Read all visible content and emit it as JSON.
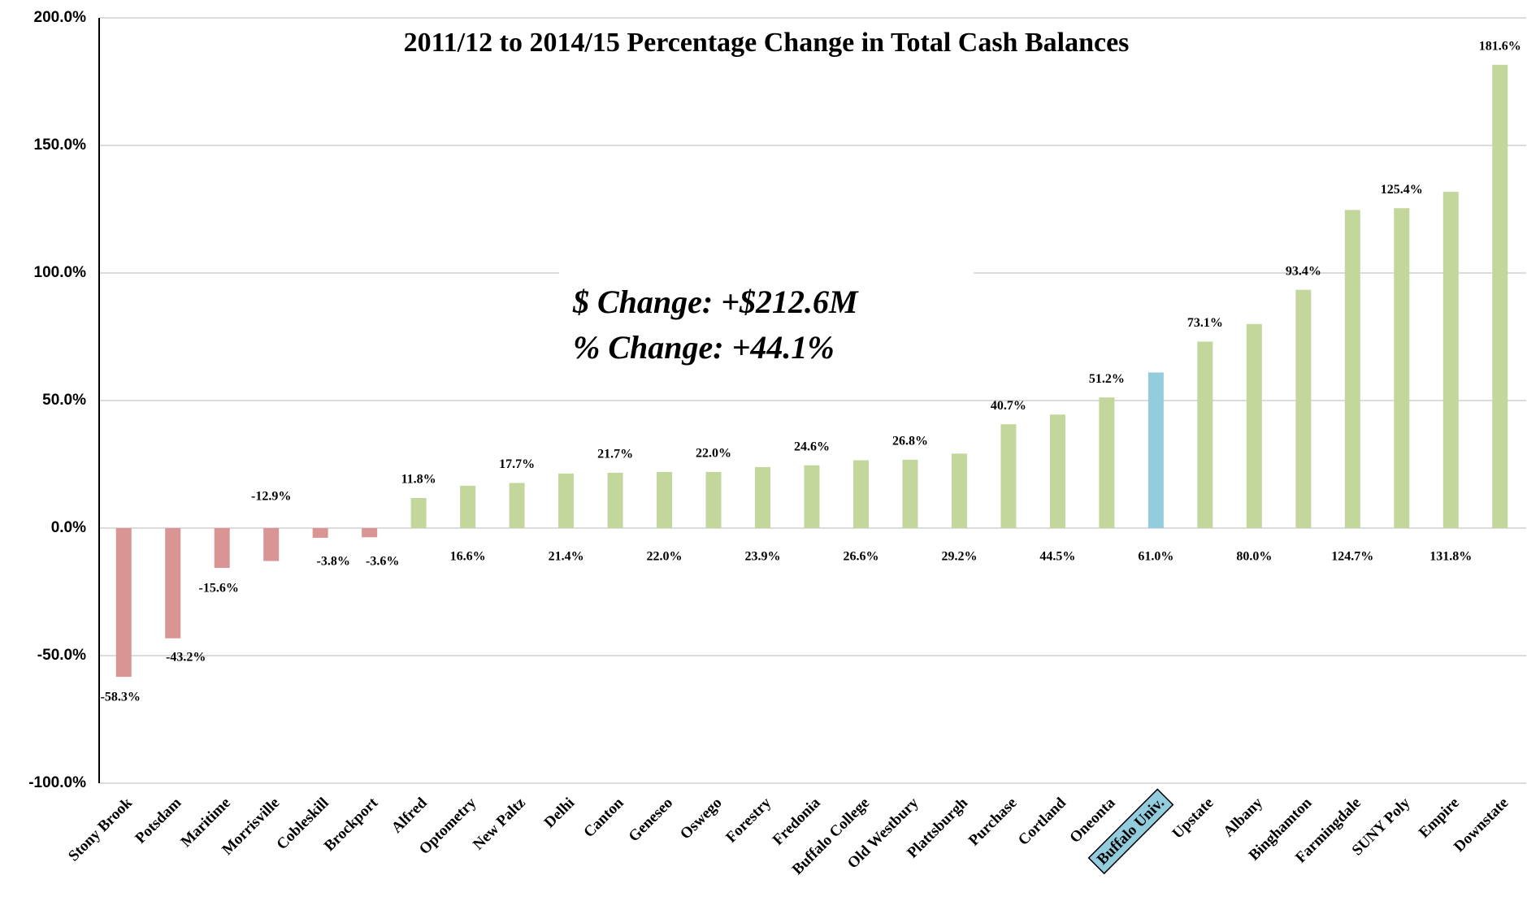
{
  "chart_data": {
    "type": "bar",
    "title": "2011/12 to 2014/15 Percentage Change in Total Cash Balances",
    "annotations": [
      "$    Change: +$212.6M",
      "%  Change: +44.1%"
    ],
    "categories": [
      "Stony Brook",
      "Potsdam",
      "Maritime",
      "Morrisville",
      "Cobleskill",
      "Brockport",
      "Alfred",
      "Optometry",
      "New Paltz",
      "Delhi",
      "Canton",
      "Geneseo",
      "Oswego",
      "Forestry",
      "Fredonia",
      "Buffalo College",
      "Old Westbury",
      "Plattsburgh",
      "Purchase",
      "Cortland",
      "Oneonta",
      "Buffalo Univ.",
      "Upstate",
      "Albany",
      "Binghamton",
      "Farmingdale",
      "SUNY Poly",
      "Empire",
      "Downstate"
    ],
    "values": [
      -58.3,
      -43.2,
      -15.6,
      -12.9,
      -3.8,
      -3.6,
      11.8,
      16.6,
      17.7,
      21.4,
      21.7,
      22.0,
      22.0,
      23.9,
      24.6,
      26.6,
      26.8,
      29.2,
      40.7,
      44.5,
      51.2,
      61.0,
      73.1,
      80.0,
      93.4,
      124.7,
      125.4,
      131.8,
      181.6
    ],
    "value_labels": [
      "-58.3%",
      "-43.2%",
      "-15.6%",
      "-12.9%",
      "-3.8%",
      "-3.6%",
      "11.8%",
      "16.6%",
      "17.7%",
      "21.4%",
      "21.7%",
      "22.0%",
      "22.0%",
      "23.9%",
      "24.6%",
      "26.6%",
      "26.8%",
      "29.2%",
      "40.7%",
      "44.5%",
      "51.2%",
      "61.0%",
      "73.1%",
      "80.0%",
      "93.4%",
      "124.7%",
      "125.4%",
      "131.8%",
      "181.6%"
    ],
    "colors": [
      "#d99594",
      "#d99594",
      "#d99594",
      "#d99594",
      "#d99594",
      "#d99594",
      "#c3d69b",
      "#c3d69b",
      "#c3d69b",
      "#c3d69b",
      "#c3d69b",
      "#c3d69b",
      "#c3d69b",
      "#c3d69b",
      "#c3d69b",
      "#c3d69b",
      "#c3d69b",
      "#c3d69b",
      "#c3d69b",
      "#c3d69b",
      "#c3d69b",
      "#93cddd",
      "#c3d69b",
      "#c3d69b",
      "#c3d69b",
      "#c3d69b",
      "#c3d69b",
      "#c3d69b",
      "#c3d69b"
    ],
    "highlight": 21,
    "ylim": [
      -100,
      200
    ],
    "yticks": [
      {
        "value": -100,
        "label": "-100.0%"
      },
      {
        "value": -50,
        "label": "-50.0%"
      },
      {
        "value": 0,
        "label": "0.0%"
      },
      {
        "value": 50,
        "label": "50.0%"
      },
      {
        "value": 100,
        "label": "100.0%"
      },
      {
        "value": 150,
        "label": "150.0%"
      },
      {
        "value": 200,
        "label": "200.0%"
      }
    ],
    "grid": true
  }
}
